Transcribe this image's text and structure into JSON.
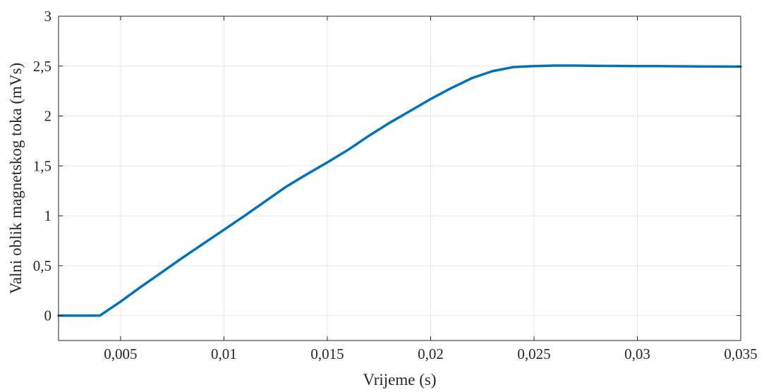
{
  "chart_data": {
    "type": "line",
    "xlabel": "Vrijeme (s)",
    "ylabel": "Valni oblik magnetskog toka (mVs)",
    "xlim": [
      0.002,
      0.035
    ],
    "ylim": [
      -0.25,
      3
    ],
    "x_ticks": [
      0.005,
      0.01,
      0.015,
      0.02,
      0.025,
      0.03,
      0.035
    ],
    "x_tick_labels": [
      "0,005",
      "0,01",
      "0,015",
      "0,02",
      "0,025",
      "0,03",
      "0,035"
    ],
    "y_ticks": [
      0,
      0.5,
      1,
      1.5,
      2,
      2.5,
      3
    ],
    "y_tick_labels": [
      "0",
      "0,5",
      "1",
      "1,5",
      "2",
      "2,5",
      "3"
    ],
    "grid": true,
    "line_color": "#0072bd",
    "series": [
      {
        "x": [
          0.002,
          0.004,
          0.005,
          0.006,
          0.007,
          0.008,
          0.009,
          0.01,
          0.011,
          0.012,
          0.013,
          0.014,
          0.015,
          0.016,
          0.017,
          0.018,
          0.019,
          0.02,
          0.021,
          0.022,
          0.023,
          0.024,
          0.025,
          0.026,
          0.027,
          0.028,
          0.029,
          0.03,
          0.031,
          0.032,
          0.033,
          0.034,
          0.035
        ],
        "y": [
          0,
          0,
          0.14,
          0.29,
          0.435,
          0.58,
          0.72,
          0.86,
          1.0,
          1.145,
          1.29,
          1.415,
          1.535,
          1.66,
          1.8,
          1.93,
          2.05,
          2.17,
          2.28,
          2.38,
          2.45,
          2.49,
          2.5,
          2.505,
          2.505,
          2.503,
          2.502,
          2.5,
          2.5,
          2.498,
          2.497,
          2.496,
          2.495
        ]
      }
    ]
  }
}
